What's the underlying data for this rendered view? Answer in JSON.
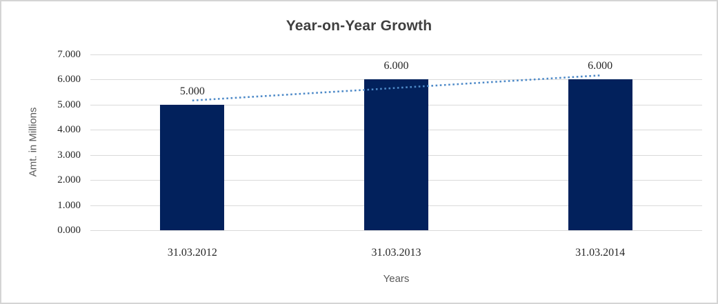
{
  "chart_data": {
    "type": "bar",
    "title": "Year-on-Year Growth",
    "xlabel": "Years",
    "ylabel": "Amt. in Millions",
    "categories": [
      "31.03.2012",
      "31.03.2013",
      "31.03.2014"
    ],
    "values": [
      5,
      6,
      6
    ],
    "value_labels": [
      "5.000",
      "6.000",
      "6.000"
    ],
    "ylim": [
      0,
      7
    ],
    "ytick_step": 1,
    "ytick_labels": [
      "0.000",
      "1.000",
      "2.000",
      "3.000",
      "4.000",
      "5.000",
      "6.000",
      "7.000"
    ],
    "grid": true,
    "legend": "none",
    "trendline": {
      "type": "linear",
      "style": "dotted"
    },
    "colors": {
      "bar": "#02215c",
      "trendline": "#4e8ac8",
      "gridline": "#d9d9d9",
      "title_text": "#3f3f3f",
      "axis_title_text": "#595959",
      "tick_text": "#262626",
      "frame_border": "#d4d4d4"
    }
  }
}
